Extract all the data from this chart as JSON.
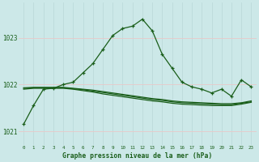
{
  "title": "Graphe pression niveau de la mer (hPa)",
  "background_color": "#cce8e8",
  "grid_color_v": "#b8d8d8",
  "grid_color_h": "#e8c8c8",
  "line_color": "#1a5e1a",
  "text_color": "#1a5e1a",
  "ylim": [
    1020.7,
    1023.75
  ],
  "yticks": [
    1021,
    1022,
    1023
  ],
  "xlim": [
    -0.5,
    23.5
  ],
  "xticks": [
    0,
    1,
    2,
    3,
    4,
    5,
    6,
    7,
    8,
    9,
    10,
    11,
    12,
    13,
    14,
    15,
    16,
    17,
    18,
    19,
    20,
    21,
    22,
    23
  ],
  "series_main": [
    1021.15,
    1021.55,
    1021.9,
    1021.92,
    1022.0,
    1022.05,
    1022.25,
    1022.45,
    1022.75,
    1023.05,
    1023.2,
    1023.25,
    1023.4,
    1023.15,
    1022.65,
    1022.35,
    1022.05,
    1021.95,
    1021.9,
    1021.82,
    1021.9,
    1021.75,
    1022.1,
    1021.95
  ],
  "series_flat": [
    [
      1021.9,
      1021.92,
      1021.92,
      1021.92,
      1021.92,
      1021.9,
      1021.87,
      1021.84,
      1021.8,
      1021.77,
      1021.74,
      1021.71,
      1021.68,
      1021.65,
      1021.63,
      1021.6,
      1021.58,
      1021.57,
      1021.56,
      1021.55,
      1021.55,
      1021.55,
      1021.58,
      1021.62
    ],
    [
      1021.92,
      1021.93,
      1021.93,
      1021.93,
      1021.93,
      1021.91,
      1021.89,
      1021.86,
      1021.83,
      1021.8,
      1021.77,
      1021.74,
      1021.71,
      1021.68,
      1021.66,
      1021.63,
      1021.61,
      1021.6,
      1021.59,
      1021.58,
      1021.57,
      1021.57,
      1021.6,
      1021.63
    ],
    [
      1021.93,
      1021.94,
      1021.94,
      1021.94,
      1021.94,
      1021.92,
      1021.9,
      1021.88,
      1021.85,
      1021.82,
      1021.79,
      1021.76,
      1021.73,
      1021.7,
      1021.68,
      1021.65,
      1021.63,
      1021.62,
      1021.61,
      1021.6,
      1021.59,
      1021.59,
      1021.61,
      1021.65
    ]
  ],
  "marker": "+",
  "markersize": 3.5,
  "linewidth": 0.9
}
